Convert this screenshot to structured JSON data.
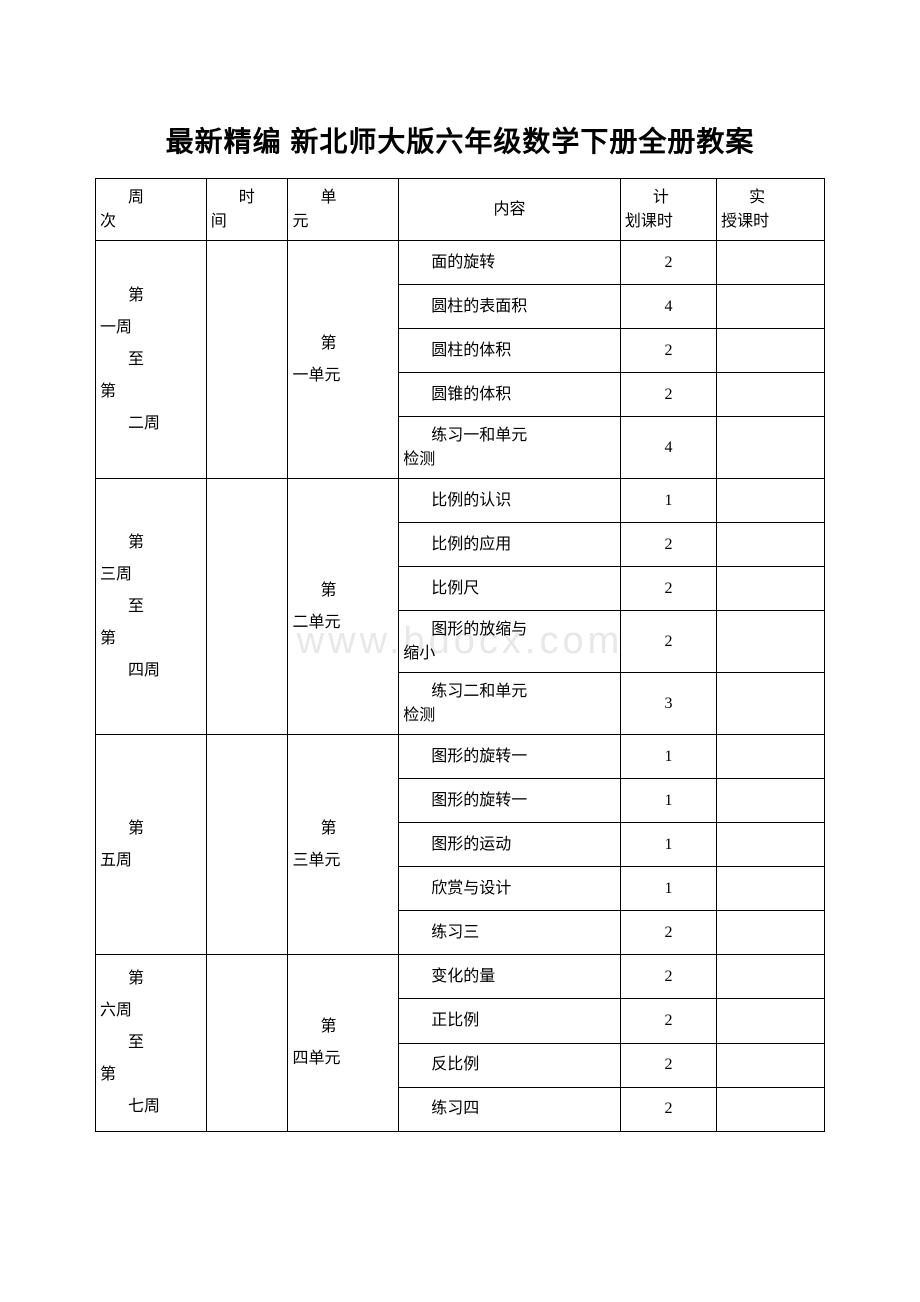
{
  "title": "最新精编 新北师大版六年级数学下册全册教案",
  "watermark": "www.bdocx.com",
  "headers": {
    "week": "周次",
    "time": "时间",
    "unit": "单元",
    "content": "内容",
    "plan": "计划课时",
    "actual": "实授课时"
  },
  "hdr_first": {
    "week": "周",
    "time": "时",
    "unit": "单",
    "plan": "计",
    "actual": "实"
  },
  "hdr_rest": {
    "week": "次",
    "time": "间",
    "unit": "元",
    "plan": "划课时",
    "actual": "授课时"
  },
  "groups": [
    {
      "week_lines": [
        "第",
        "一周",
        "至",
        "第",
        "二周"
      ],
      "unit_lines": [
        "第",
        "一单元"
      ],
      "rows": [
        {
          "content": "面的旋转",
          "indent": true,
          "plan": "2",
          "tall": false
        },
        {
          "content": "圆柱的表面积",
          "indent": true,
          "plan": "4",
          "tall": false
        },
        {
          "content": "圆柱的体积",
          "indent": true,
          "plan": "2",
          "tall": false
        },
        {
          "content": "圆锥的体积",
          "indent": true,
          "plan": "2",
          "tall": false
        },
        {
          "content_lines": [
            "练习一和单元",
            "检测"
          ],
          "plan": "4",
          "tall": true
        }
      ]
    },
    {
      "week_lines": [
        "第",
        "三周",
        "至",
        "第",
        "四周"
      ],
      "unit_lines": [
        "第",
        "二单元"
      ],
      "rows": [
        {
          "content": "比例的认识",
          "indent": true,
          "plan": "1",
          "tall": false
        },
        {
          "content": "比例的应用",
          "indent": true,
          "plan": "2",
          "tall": false
        },
        {
          "content": "比例尺",
          "indent": true,
          "plan": "2",
          "tall": false
        },
        {
          "content_lines": [
            "图形的放缩与",
            "缩小"
          ],
          "plan": "2",
          "tall": true
        },
        {
          "content_lines": [
            "练习二和单元",
            "检测"
          ],
          "plan": "3",
          "tall": true
        }
      ]
    },
    {
      "week_lines": [
        "第",
        "五周"
      ],
      "unit_lines": [
        "第",
        "三单元"
      ],
      "rows": [
        {
          "content": "图形的旋转一",
          "indent": true,
          "plan": "1",
          "tall": false
        },
        {
          "content": "图形的旋转一",
          "indent": true,
          "plan": "1",
          "tall": false
        },
        {
          "content": "图形的运动",
          "indent": true,
          "plan": "1",
          "tall": false
        },
        {
          "content": "欣赏与设计",
          "indent": true,
          "plan": "1",
          "tall": false
        },
        {
          "content": "练习三",
          "indent": true,
          "plan": "2",
          "tall": false
        }
      ]
    },
    {
      "week_lines": [
        "第",
        "六周",
        "至",
        "第",
        "七周"
      ],
      "unit_lines": [
        "第",
        "四单元"
      ],
      "rows": [
        {
          "content": "变化的量",
          "indent": true,
          "plan": "2",
          "tall": false
        },
        {
          "content": "正比例",
          "indent": true,
          "plan": "2",
          "tall": false
        },
        {
          "content": "反比例",
          "indent": true,
          "plan": "2",
          "tall": false
        },
        {
          "content": "练习四",
          "indent": true,
          "plan": "2",
          "tall": false
        }
      ]
    }
  ],
  "colors": {
    "text": "#000000",
    "border": "#000000",
    "background": "#ffffff",
    "watermark": "#e8e8e8"
  }
}
